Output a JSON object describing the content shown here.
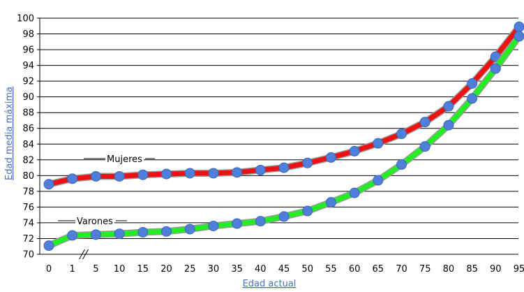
{
  "chart_data": {
    "type": "line",
    "x": [
      "0",
      "1",
      "5",
      "10",
      "15",
      "20",
      "25",
      "30",
      "35",
      "40",
      "45",
      "50",
      "55",
      "60",
      "65",
      "70",
      "75",
      "80",
      "85",
      "90",
      "95"
    ],
    "series": [
      {
        "name": "Mujeres",
        "values": [
          78.9,
          79.6,
          79.9,
          79.9,
          80.1,
          80.2,
          80.3,
          80.3,
          80.4,
          80.7,
          81.0,
          81.6,
          82.3,
          83.1,
          84.1,
          85.3,
          86.8,
          88.8,
          91.7,
          95.1,
          98.9
        ],
        "line_color": "#ee1111",
        "marker_color": "#4f7fd8"
      },
      {
        "name": "Varones",
        "values": [
          71.1,
          72.4,
          72.5,
          72.6,
          72.8,
          72.9,
          73.2,
          73.6,
          73.9,
          74.2,
          74.8,
          75.5,
          76.6,
          77.8,
          79.4,
          81.4,
          83.7,
          86.4,
          89.8,
          93.6,
          97.7
        ],
        "line_color": "#22ee22",
        "marker_color": "#4f7fd8"
      }
    ],
    "xlabel": "Edad actual",
    "ylabel": "Edad media máxima",
    "ylim": [
      70,
      100
    ],
    "yticks": [
      "70",
      "72",
      "74",
      "76",
      "78",
      "80",
      "82",
      "84",
      "86",
      "88",
      "90",
      "92",
      "94",
      "96",
      "98",
      "100"
    ],
    "grid": true,
    "axis_break_after": "1",
    "colors": {
      "grid": "#000000",
      "axis_title": "#4472c4",
      "line_outline": "#9a9a9a"
    }
  }
}
